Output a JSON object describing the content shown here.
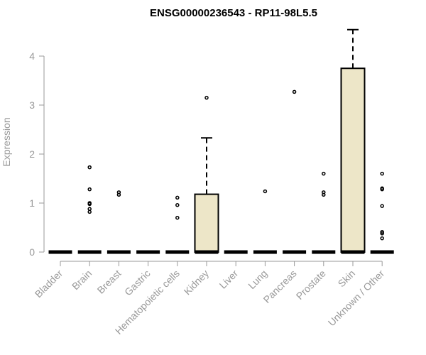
{
  "chart_data": {
    "type": "boxplot",
    "title": "ENSG00000236543 - RP11-98L5.5",
    "xlabel": "",
    "ylabel": "Expression",
    "ylim": [
      0,
      4.5
    ],
    "yticks": [
      0,
      1,
      2,
      3,
      4
    ],
    "grid": false,
    "legend": "none",
    "box_fill": "#ede6c8",
    "axis_color": "#999999",
    "categories": [
      "Bladder",
      "Brain",
      "Breast",
      "Gastric",
      "Hematopoietic cells",
      "Kidney",
      "Liver",
      "Lung",
      "Pancreas",
      "Prostate",
      "Skin",
      "Unknown / Other"
    ],
    "boxes": [
      {
        "category": "Bladder",
        "min": 0,
        "q1": 0,
        "median": 0,
        "q3": 0,
        "max": 0,
        "outliers": []
      },
      {
        "category": "Brain",
        "min": 0,
        "q1": 0,
        "median": 0,
        "q3": 0,
        "max": 0,
        "outliers": [
          0.82,
          0.88,
          0.98,
          1.0,
          1.28,
          1.73
        ]
      },
      {
        "category": "Breast",
        "min": 0,
        "q1": 0,
        "median": 0,
        "q3": 0,
        "max": 0,
        "outliers": [
          1.17,
          1.22
        ]
      },
      {
        "category": "Gastric",
        "min": 0,
        "q1": 0,
        "median": 0,
        "q3": 0,
        "max": 0,
        "outliers": []
      },
      {
        "category": "Hematopoietic cells",
        "min": 0,
        "q1": 0,
        "median": 0,
        "q3": 0,
        "max": 0,
        "outliers": [
          0.7,
          0.96,
          1.11
        ]
      },
      {
        "category": "Kidney",
        "min": 0,
        "q1": 0,
        "median": 0,
        "q3": 1.18,
        "max": 2.33,
        "outliers": [
          3.15
        ]
      },
      {
        "category": "Liver",
        "min": 0,
        "q1": 0,
        "median": 0,
        "q3": 0,
        "max": 0,
        "outliers": []
      },
      {
        "category": "Lung",
        "min": 0,
        "q1": 0,
        "median": 0,
        "q3": 0,
        "max": 0,
        "outliers": [
          1.24
        ]
      },
      {
        "category": "Pancreas",
        "min": 0,
        "q1": 0,
        "median": 0,
        "q3": 0,
        "max": 0,
        "outliers": [
          3.27
        ]
      },
      {
        "category": "Prostate",
        "min": 0,
        "q1": 0,
        "median": 0,
        "q3": 0,
        "max": 0,
        "outliers": [
          1.17,
          1.22,
          1.6
        ]
      },
      {
        "category": "Skin",
        "min": 0,
        "q1": 0,
        "median": 0,
        "q3": 3.75,
        "max": 4.54,
        "outliers": []
      },
      {
        "category": "Unknown / Other",
        "min": 0,
        "q1": 0,
        "median": 0,
        "q3": 0,
        "max": 0,
        "outliers": [
          0.28,
          0.38,
          0.41,
          0.94,
          1.28,
          1.3,
          1.6
        ]
      }
    ]
  }
}
